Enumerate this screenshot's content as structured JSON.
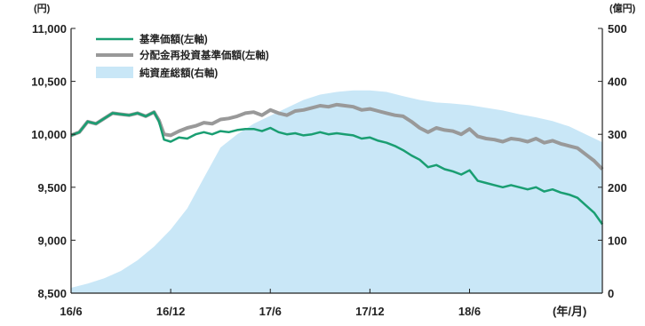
{
  "chart_data": {
    "type": "line",
    "title": "",
    "left_axis": {
      "unit_label": "(円)",
      "ylim": [
        8500,
        11000
      ],
      "ticks": [
        8500,
        9000,
        9500,
        10000,
        10500,
        11000
      ],
      "tick_labels": [
        "8,500",
        "9,000",
        "9,500",
        "10,000",
        "10,500",
        "11,000"
      ]
    },
    "right_axis": {
      "unit_label": "(億円)",
      "ylim": [
        0,
        500
      ],
      "ticks": [
        0,
        100,
        200,
        300,
        400,
        500
      ],
      "tick_labels": [
        "0",
        "100",
        "200",
        "300",
        "400",
        "500"
      ]
    },
    "x_axis": {
      "unit_label": "(年/月)",
      "range_months": [
        0,
        32
      ],
      "tick_labels": [
        "16/6",
        "16/12",
        "17/6",
        "17/12",
        "18/6"
      ],
      "tick_positions_months": [
        0,
        6,
        12,
        18,
        24
      ]
    },
    "legend_position": "top-left",
    "grid": false,
    "series": [
      {
        "name": "基準価額(左軸)",
        "kind": "line",
        "axis": "left",
        "color": "#1a9e72",
        "x_months": [
          0,
          0.5,
          1,
          1.5,
          2,
          2.5,
          3,
          3.5,
          4,
          4.5,
          5,
          5.3,
          5.6,
          6,
          6.5,
          7,
          7.5,
          8,
          8.5,
          9,
          9.5,
          10,
          10.5,
          11,
          11.5,
          12,
          12.5,
          13,
          13.5,
          14,
          14.5,
          15,
          15.5,
          16,
          16.5,
          17,
          17.5,
          18,
          18.5,
          19,
          19.5,
          20,
          20.5,
          21,
          21.5,
          22,
          22.5,
          23,
          23.5,
          24,
          24.5,
          25,
          25.5,
          26,
          26.5,
          27,
          27.5,
          28,
          28.5,
          29,
          29.5,
          30,
          30.5,
          31,
          31.5,
          32
        ],
        "values": [
          9990,
          10020,
          10120,
          10100,
          10150,
          10200,
          10190,
          10180,
          10200,
          10170,
          10210,
          10120,
          9950,
          9930,
          9970,
          9960,
          10000,
          10020,
          10000,
          10030,
          10020,
          10040,
          10050,
          10050,
          10030,
          10060,
          10020,
          10000,
          10010,
          9990,
          10000,
          10020,
          10000,
          10010,
          10000,
          9990,
          9960,
          9970,
          9940,
          9920,
          9890,
          9850,
          9800,
          9760,
          9690,
          9710,
          9670,
          9650,
          9620,
          9660,
          9560,
          9540,
          9520,
          9500,
          9520,
          9500,
          9480,
          9500,
          9460,
          9480,
          9450,
          9430,
          9400,
          9330,
          9260,
          9150
        ]
      },
      {
        "name": "分配金再投資基準価額(左軸)",
        "kind": "line",
        "axis": "left",
        "color": "#999999",
        "x_months": [
          0,
          0.5,
          1,
          1.5,
          2,
          2.5,
          3,
          3.5,
          4,
          4.5,
          5,
          5.3,
          5.6,
          6,
          6.5,
          7,
          7.5,
          8,
          8.5,
          9,
          9.5,
          10,
          10.5,
          11,
          11.5,
          12,
          12.5,
          13,
          13.5,
          14,
          14.5,
          15,
          15.5,
          16,
          16.5,
          17,
          17.5,
          18,
          18.5,
          19,
          19.5,
          20,
          20.5,
          21,
          21.5,
          22,
          22.5,
          23,
          23.5,
          24,
          24.5,
          25,
          25.5,
          26,
          26.5,
          27,
          27.5,
          28,
          28.5,
          29,
          29.5,
          30,
          30.5,
          31,
          31.5,
          32
        ],
        "values": [
          9990,
          10020,
          10120,
          10100,
          10150,
          10200,
          10190,
          10180,
          10200,
          10170,
          10210,
          10130,
          10000,
          9990,
          10030,
          10060,
          10080,
          10110,
          10100,
          10140,
          10150,
          10170,
          10200,
          10210,
          10180,
          10230,
          10200,
          10180,
          10220,
          10230,
          10250,
          10270,
          10260,
          10280,
          10270,
          10260,
          10230,
          10240,
          10220,
          10200,
          10180,
          10170,
          10120,
          10060,
          10020,
          10060,
          10040,
          10030,
          10000,
          10050,
          9980,
          9960,
          9950,
          9930,
          9960,
          9950,
          9930,
          9960,
          9920,
          9940,
          9910,
          9890,
          9870,
          9810,
          9750,
          9670
        ]
      },
      {
        "name": "純資産総額(右軸)",
        "kind": "area",
        "axis": "right",
        "color": "#c9e7f7",
        "x_months": [
          0,
          1,
          2,
          3,
          4,
          5,
          6,
          7,
          8,
          9,
          10,
          11,
          12,
          13,
          14,
          15,
          16,
          17,
          18,
          19,
          20,
          21,
          22,
          23,
          24,
          25,
          26,
          27,
          28,
          29,
          30,
          31,
          32
        ],
        "values": [
          10,
          18,
          28,
          42,
          62,
          88,
          120,
          160,
          218,
          275,
          300,
          320,
          335,
          350,
          365,
          375,
          380,
          383,
          383,
          380,
          372,
          365,
          360,
          358,
          355,
          350,
          345,
          338,
          332,
          325,
          315,
          300,
          285
        ]
      }
    ]
  }
}
